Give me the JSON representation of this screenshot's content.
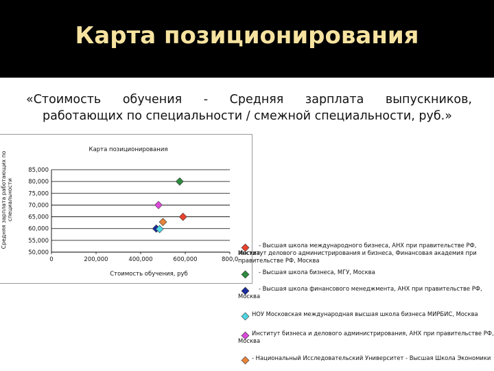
{
  "slide": {
    "title": "Карта позиционирования",
    "subtitle_line1": "«Стоимость обучения - Средняя зарплата выпускников,",
    "subtitle_line2": "работающих по специальности / смежной специальности, руб.»"
  },
  "chart_data": {
    "type": "scatter",
    "title": "Карта позиционирования",
    "xlabel": "Стоимость обучения, руб",
    "ylabel": "Средняя зарплата работающих по специальности",
    "xlim": [
      0,
      800000
    ],
    "ylim": [
      50000,
      85000
    ],
    "x_ticks": [
      "0",
      "200,000",
      "400,000",
      "600,000",
      "800,0"
    ],
    "x_tick_values": [
      0,
      200000,
      400000,
      600000,
      800000
    ],
    "y_ticks": [
      "85,000",
      "80,000",
      "75,000",
      "70,000",
      "65,000",
      "60,000",
      "55,000",
      "50,000"
    ],
    "y_tick_values": [
      85000,
      80000,
      75000,
      70000,
      65000,
      60000,
      55000,
      50000
    ],
    "grid": "horizontal",
    "legend_position": "right",
    "series": [
      {
        "name": "- Высшая школа международного бизнеса, АНХ при правительстве РФ, Москва",
        "color": "#e8412c",
        "x": [
          590000
        ],
        "y": [
          65000
        ]
      },
      {
        "name": "Институт делового администрирования и бизнеса, Финансовая академия при правительстве РФ, Москва",
        "color": "#e8412c",
        "x": [],
        "y": []
      },
      {
        "name": "- Высшая школа бизнеса, МГУ, Москва",
        "color": "#2e8b3e",
        "x": [
          575000
        ],
        "y": [
          80000
        ]
      },
      {
        "name": "- Высшая школа финансового менеджмента, АНХ при правительстве РФ, Москва",
        "color": "#1a2b9c",
        "x": [
          470000
        ],
        "y": [
          60000
        ]
      },
      {
        "name": "НОУ Московская международная высшая школа бизнеса МИРБИС, Москва",
        "color": "#4fd6e3",
        "x": [
          485000
        ],
        "y": [
          59800
        ]
      },
      {
        "name": "Институт бизнеса и делового администрирования, АНХ при правительстве РФ, Москва",
        "color": "#d94ad9",
        "x": [
          480000
        ],
        "y": [
          70000
        ]
      },
      {
        "name": "- Национальный Исследовательский Университет - Высшая Школа Экономики",
        "color": "#e8843a",
        "x": [
          500000
        ],
        "y": [
          62800
        ]
      }
    ]
  }
}
